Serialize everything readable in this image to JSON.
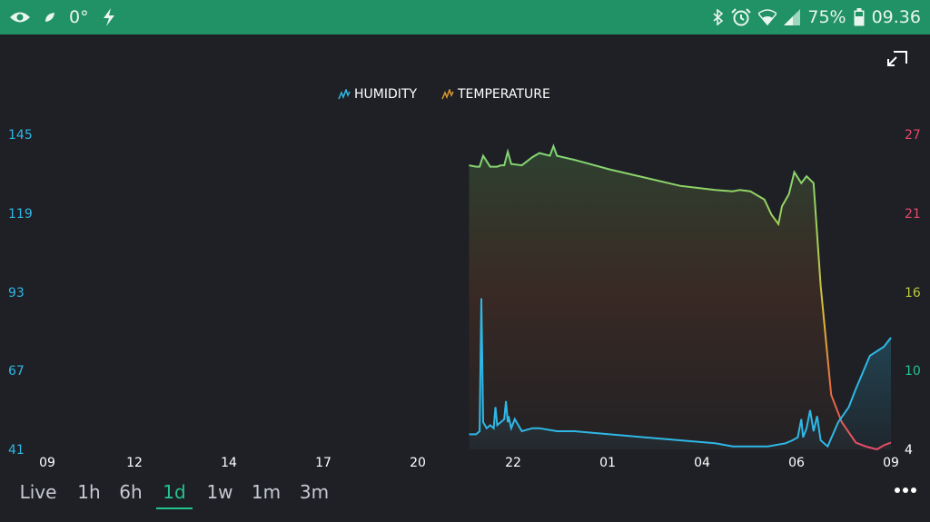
{
  "status_bar": {
    "temperature": "0°",
    "battery_percent": "75%",
    "time": "09.36",
    "icons": [
      "eye-icon",
      "leaf-icon",
      "flash-icon",
      "bluetooth-icon",
      "alarm-icon",
      "wifi-icon",
      "signal-icon",
      "battery-icon"
    ]
  },
  "fullscreen": {
    "icon": "exit-fullscreen-icon"
  },
  "legend": [
    {
      "label": "HUMIDITY",
      "color": "#2fb8e6"
    },
    {
      "label": "TEMPERATURE",
      "color": "#d9982e"
    }
  ],
  "time_ranges": {
    "selected": "1d",
    "items": [
      "Live",
      "1h",
      "6h",
      "1d",
      "1w",
      "1m",
      "3m"
    ]
  },
  "more_menu": {
    "icon": "more-dots-icon"
  },
  "colors": {
    "background": "#1e2025",
    "status_bar": "#219166",
    "accent": "#23c48e",
    "humidity": "#2fb8e6"
  },
  "chart_data": {
    "type": "line",
    "x_ticks": [
      "09",
      "12",
      "14",
      "17",
      "20",
      "22",
      "01",
      "04",
      "06",
      "09"
    ],
    "y_left": {
      "ticks": [
        "145",
        "119",
        "93",
        "67",
        "41"
      ],
      "range": [
        41,
        145
      ],
      "color": "#2fb8e6"
    },
    "y_right": {
      "ticks": [
        "27",
        "21",
        "16",
        "10",
        "4"
      ],
      "range": [
        4,
        27
      ],
      "tick_colors": [
        "#e74a6a",
        "#e74a6a",
        "#b8c93a",
        "#23c48e",
        "#ffffff"
      ]
    },
    "legend_position": "top-center",
    "grid": false,
    "series": [
      {
        "name": "HUMIDITY",
        "axis": "left",
        "x": [
          21.0,
          21.2,
          21.3,
          21.35,
          21.4,
          21.5,
          21.6,
          21.7,
          21.75,
          21.8,
          21.9,
          22.0,
          22.05,
          22.1,
          22.12,
          22.2,
          22.3,
          22.5,
          22.8,
          23.0,
          23.5,
          24.0,
          25.0,
          26.0,
          27.0,
          28.0,
          28.5,
          29.0,
          29.5,
          30.0,
          30.2,
          30.35,
          30.45,
          30.5,
          30.6,
          30.7,
          30.8,
          30.9,
          31.0,
          31.2,
          31.5,
          31.8,
          32.0,
          32.4,
          32.8,
          33.0
        ],
        "y": [
          46,
          46,
          47,
          91,
          50,
          48,
          49,
          48,
          55,
          49,
          50,
          51,
          57,
          50,
          52,
          48,
          51,
          47,
          48,
          48,
          47,
          47,
          46,
          45,
          44,
          43,
          42,
          42,
          42,
          43,
          44,
          45,
          51,
          45,
          48,
          54,
          47,
          52,
          44,
          42,
          50,
          55,
          61,
          72,
          75,
          78
        ]
      },
      {
        "name": "TEMPERATURE",
        "axis": "right",
        "x": [
          21.0,
          21.2,
          21.3,
          21.4,
          21.6,
          21.8,
          21.9,
          22.0,
          22.1,
          22.2,
          22.5,
          22.8,
          23.0,
          23.3,
          23.4,
          23.5,
          24.0,
          25.0,
          26.0,
          27.0,
          28.0,
          28.5,
          28.7,
          29.0,
          29.2,
          29.4,
          29.6,
          29.8,
          29.9,
          30.1,
          30.25,
          30.45,
          30.6,
          30.8,
          31.0,
          31.3,
          31.6,
          32.0,
          32.3,
          32.6,
          32.8,
          33.0
        ],
        "y": [
          24.8,
          24.7,
          24.7,
          25.5,
          24.7,
          24.7,
          24.8,
          24.8,
          25.8,
          24.9,
          24.8,
          25.4,
          25.7,
          25.5,
          26.2,
          25.5,
          25.2,
          24.5,
          23.9,
          23.3,
          23.0,
          22.9,
          23.0,
          22.9,
          22.6,
          22.3,
          21.2,
          20.5,
          21.8,
          22.7,
          24.3,
          23.5,
          24.0,
          23.5,
          16.0,
          8.0,
          6.0,
          4.5,
          4.2,
          4.0,
          4.3,
          4.5
        ]
      }
    ]
  }
}
